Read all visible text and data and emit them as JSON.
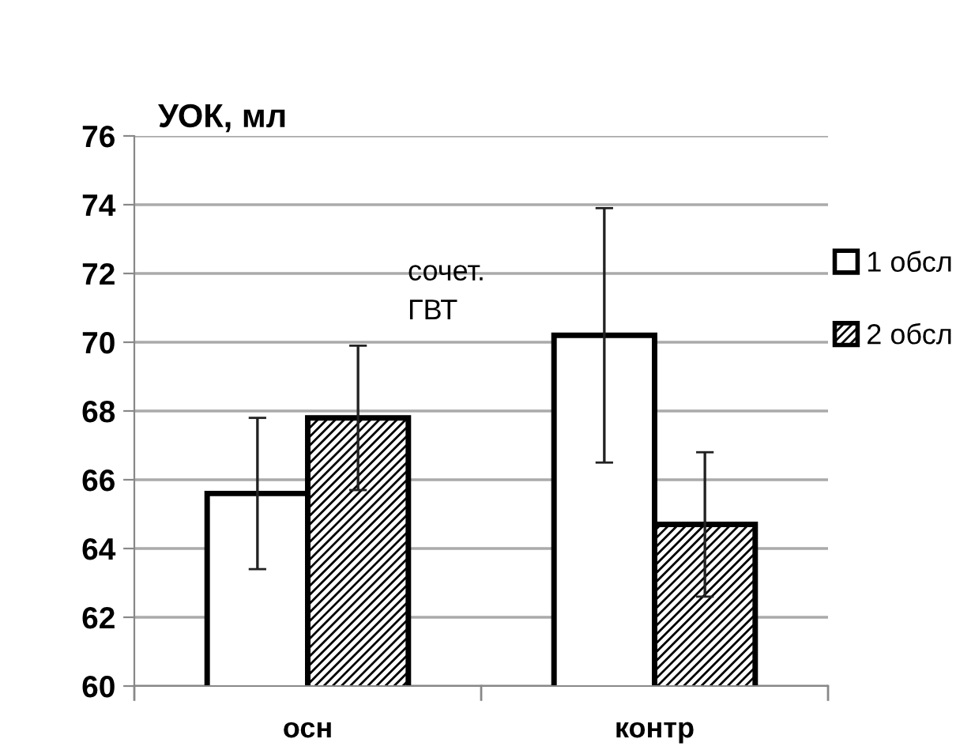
{
  "chart_data": {
    "type": "bar",
    "title": "УОК, мл",
    "categories": [
      "осн",
      "контр"
    ],
    "series": [
      {
        "name": "1 обсл",
        "color": "#ffffff",
        "values": [
          65.6,
          70.2
        ],
        "errors": [
          2.2,
          3.7
        ]
      },
      {
        "name": "2 обсл",
        "color": "#000000",
        "values": [
          67.8,
          64.7
        ],
        "errors": [
          2.1,
          2.1
        ]
      }
    ],
    "ylim": [
      60,
      76
    ],
    "yticks": [
      60,
      62,
      64,
      66,
      68,
      70,
      72,
      74,
      76
    ],
    "grid": "y",
    "legend": "right",
    "annotations": [
      "сочет.\nГВТ"
    ]
  }
}
